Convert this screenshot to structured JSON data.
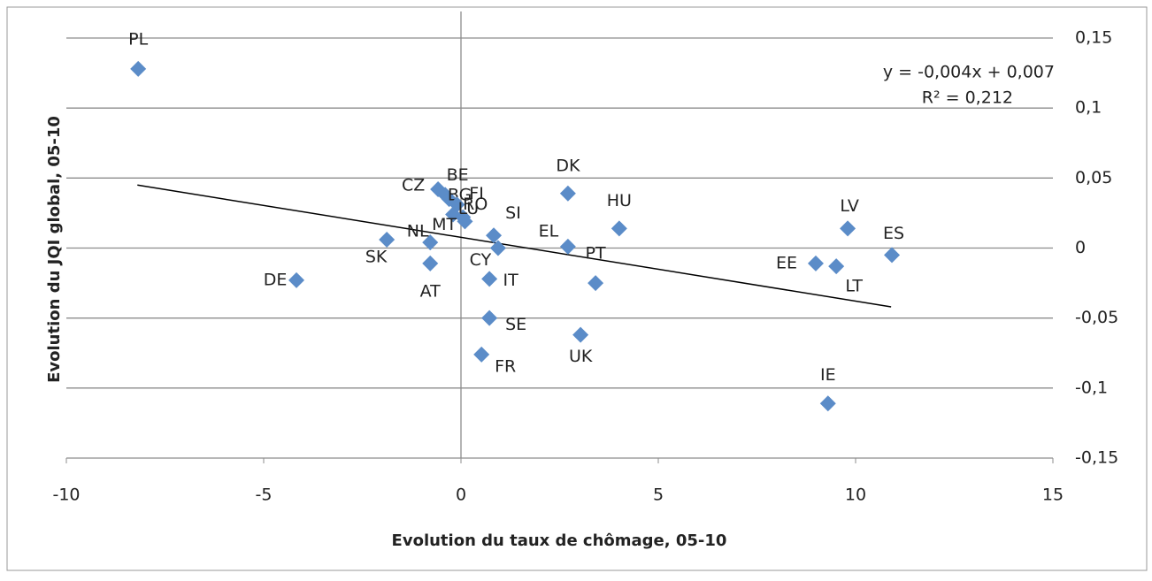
{
  "chart_data": {
    "type": "scatter",
    "x_label": "Evolution du taux de chômage, 05-10",
    "y_label": "Evolution du JQI global,  05-10",
    "point_labels": [
      "PL",
      "DE",
      "SK",
      "NL",
      "AT",
      "CZ",
      "BE",
      "BG",
      "FI",
      "RO",
      "LU",
      "MT",
      "SI",
      "CY",
      "IT",
      "SE",
      "FR",
      "DK",
      "EL",
      "PT",
      "UK",
      "HU",
      "LV",
      "ES",
      "EE",
      "LT",
      "IE"
    ],
    "x": [
      -8.18,
      -4.17,
      -1.88,
      -0.78,
      -0.78,
      -0.58,
      -0.4,
      -0.3,
      -0.1,
      0.05,
      0.1,
      -0.2,
      0.83,
      0.94,
      0.72,
      0.72,
      0.52,
      2.71,
      2.71,
      3.41,
      3.03,
      4.01,
      9.8,
      10.92,
      8.99,
      9.51,
      9.3
    ],
    "values": [
      0.128,
      -0.023,
      0.006,
      0.004,
      -0.011,
      0.042,
      0.038,
      0.035,
      0.031,
      0.022,
      0.019,
      0.024,
      0.009,
      0.0,
      -0.022,
      -0.05,
      -0.076,
      0.039,
      0.001,
      -0.025,
      -0.062,
      0.014,
      0.014,
      -0.005,
      -0.011,
      -0.013,
      -0.111
    ],
    "color": "#5b8cc8",
    "trendline": {
      "x": [
        -8.2,
        10.9
      ],
      "y": [
        0.045,
        -0.042
      ],
      "color": "#000000"
    },
    "equation": "y = -0,004x + 0,007",
    "r_squared": "R² = 0,212",
    "xlim": [
      -10,
      15
    ],
    "xticks": [
      -10,
      -5,
      0,
      5,
      10,
      15
    ],
    "ylim": [
      -0.15,
      0.15
    ],
    "yticks": [
      {
        "value": 0.15,
        "label": "0,15"
      },
      {
        "value": 0.1,
        "label": "0,1"
      },
      {
        "value": 0.05,
        "label": "0,05"
      },
      0,
      {
        "value": -0.05,
        "label": "-0,05"
      },
      {
        "value": -0.1,
        "label": "-0,1"
      },
      {
        "value": -0.15,
        "label": "-0,15"
      }
    ],
    "grid": true
  }
}
